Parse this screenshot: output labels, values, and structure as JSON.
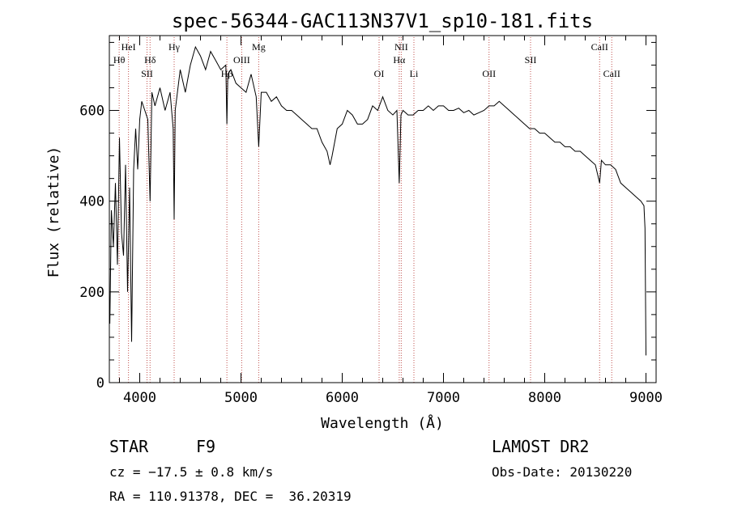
{
  "chart_data": {
    "type": "line",
    "title": "spec-56344-GAC113N37V1_sp10-181.fits",
    "xlabel": "Wavelength (Å)",
    "ylabel": "Flux (relative)",
    "xlim": [
      3700,
      9100
    ],
    "ylim": [
      0,
      765
    ],
    "xticks": [
      4000,
      5000,
      6000,
      7000,
      8000,
      9000
    ],
    "xtick_labels": [
      "4000",
      "5000",
      "6000",
      "7000",
      "8000",
      "9000"
    ],
    "yticks": [
      0,
      200,
      400,
      600
    ],
    "ytick_labels": [
      "0",
      "200",
      "400",
      "600"
    ],
    "grid": false,
    "series": [
      {
        "color": "#000000",
        "x": [
          3705,
          3720,
          3740,
          3760,
          3780,
          3800,
          3820,
          3840,
          3860,
          3880,
          3900,
          3920,
          3940,
          3960,
          3980,
          4000,
          4020,
          4050,
          4080,
          4102,
          4120,
          4150,
          4200,
          4250,
          4300,
          4330,
          4340,
          4350,
          4400,
          4450,
          4500,
          4550,
          4600,
          4650,
          4700,
          4750,
          4800,
          4850,
          4861,
          4870,
          4900,
          4950,
          5000,
          5050,
          5100,
          5150,
          5175,
          5200,
          5250,
          5300,
          5350,
          5400,
          5450,
          5500,
          5550,
          5600,
          5650,
          5700,
          5750,
          5800,
          5850,
          5880,
          5900,
          5950,
          6000,
          6050,
          6100,
          6150,
          6200,
          6250,
          6300,
          6350,
          6400,
          6450,
          6500,
          6540,
          6563,
          6580,
          6600,
          6650,
          6700,
          6750,
          6800,
          6850,
          6900,
          6950,
          7000,
          7050,
          7100,
          7150,
          7200,
          7250,
          7300,
          7350,
          7400,
          7450,
          7500,
          7550,
          7600,
          7650,
          7700,
          7750,
          7800,
          7850,
          7900,
          7950,
          8000,
          8050,
          8100,
          8150,
          8200,
          8250,
          8300,
          8350,
          8400,
          8450,
          8500,
          8542,
          8560,
          8600,
          8650,
          8700,
          8750,
          8800,
          8850,
          8900,
          8950,
          8980,
          8990,
          9000
        ],
        "y": [
          130,
          380,
          300,
          440,
          260,
          540,
          330,
          280,
          480,
          200,
          430,
          90,
          470,
          560,
          470,
          580,
          620,
          600,
          580,
          400,
          640,
          610,
          650,
          600,
          640,
          560,
          360,
          600,
          690,
          640,
          700,
          740,
          720,
          690,
          730,
          710,
          690,
          700,
          570,
          680,
          690,
          660,
          650,
          640,
          680,
          630,
          520,
          640,
          640,
          620,
          630,
          610,
          600,
          600,
          590,
          580,
          570,
          560,
          560,
          530,
          510,
          480,
          500,
          560,
          570,
          600,
          590,
          570,
          570,
          580,
          610,
          600,
          630,
          600,
          590,
          600,
          440,
          590,
          600,
          590,
          590,
          600,
          600,
          610,
          600,
          610,
          610,
          600,
          600,
          605,
          595,
          600,
          590,
          595,
          600,
          610,
          610,
          620,
          610,
          600,
          590,
          580,
          570,
          560,
          560,
          550,
          550,
          540,
          530,
          530,
          520,
          520,
          510,
          510,
          500,
          490,
          480,
          440,
          490,
          480,
          480,
          470,
          440,
          430,
          420,
          410,
          400,
          390,
          340,
          60
        ]
      }
    ],
    "annotations": [
      {
        "label": "Hθ",
        "x": 3797,
        "row": 2
      },
      {
        "label": "HeI",
        "x": 3889,
        "row": 1
      },
      {
        "label": "Hδ",
        "x": 4102,
        "row": 2
      },
      {
        "label": "SII",
        "x": 4072,
        "row": 3
      },
      {
        "label": "Hγ",
        "x": 4340,
        "row": 1
      },
      {
        "label": "Hβ",
        "x": 4861,
        "row": 3
      },
      {
        "label": "OIII",
        "x": 5007,
        "row": 2
      },
      {
        "label": "Mg",
        "x": 5175,
        "row": 1
      },
      {
        "label": "OI",
        "x": 6364,
        "row": 3
      },
      {
        "label": "NII",
        "x": 6583,
        "row": 1
      },
      {
        "label": "Hα",
        "x": 6563,
        "row": 2
      },
      {
        "label": "Li",
        "x": 6708,
        "row": 3
      },
      {
        "label": "OII",
        "x": 7450,
        "row": 3
      },
      {
        "label": "SII",
        "x": 7860,
        "row": 2
      },
      {
        "label": "CaII",
        "x": 8542,
        "row": 1
      },
      {
        "label": "CaII",
        "x": 8662,
        "row": 3
      }
    ]
  },
  "footer": {
    "object_class": "STAR",
    "object_type": "F9",
    "survey": "LAMOST DR2",
    "cz": "cz = −17.5 ± 0.8 km/s",
    "obs_date": "Obs-Date: 20130220",
    "ra_dec": "RA = 110.91378, DEC =  36.20319"
  }
}
